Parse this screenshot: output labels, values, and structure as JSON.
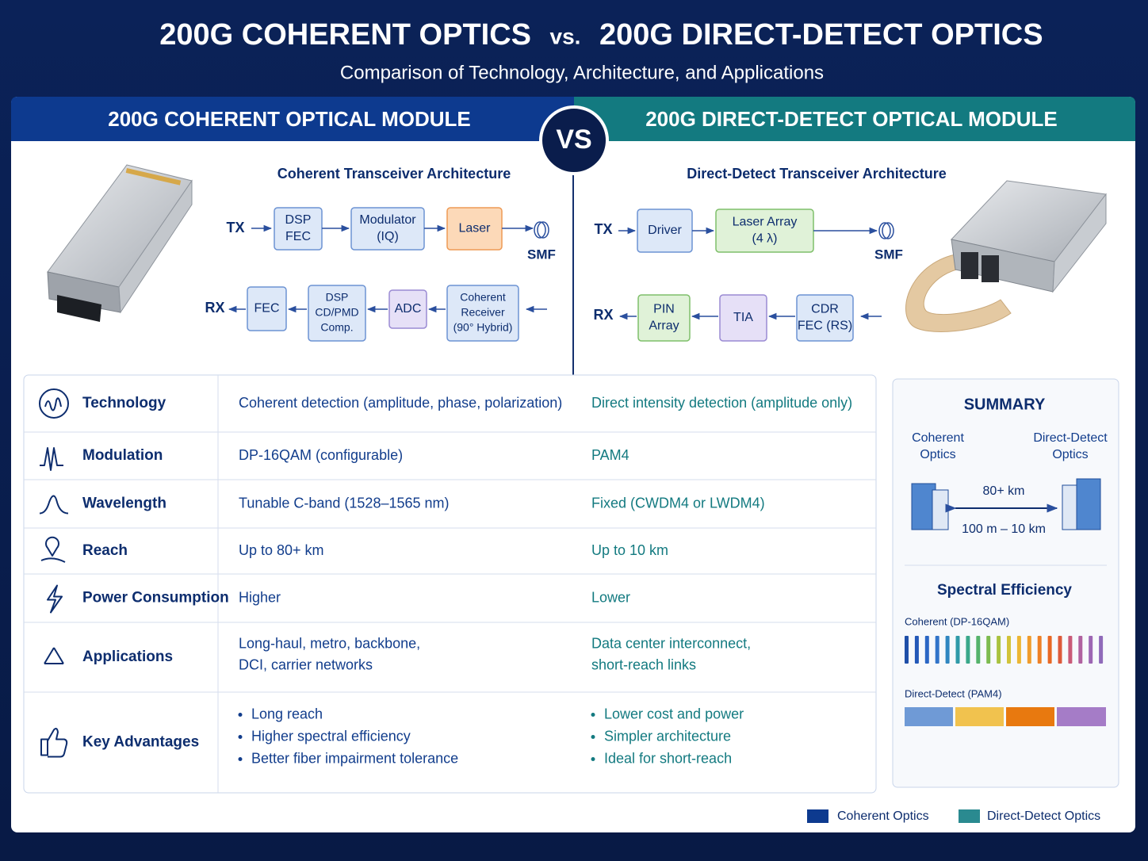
{
  "header": {
    "title_left": "200G COHERENT OPTICS",
    "title_vs": "vs.",
    "title_right": "200G DIRECT-DETECT OPTICS",
    "subtitle": "Comparison of Technology, Architecture, and Applications"
  },
  "coherent": {
    "heading": "200G COHERENT OPTICAL MODULE",
    "arch_title": "Coherent Transceiver Architecture",
    "tx": "TX",
    "rx": "RX",
    "smf": "SMF",
    "tx_blocks": [
      [
        "DSP",
        "FEC"
      ],
      [
        "Modulator",
        "(IQ)"
      ],
      [
        "Laser"
      ]
    ],
    "rx_blocks": [
      [
        "FEC"
      ],
      [
        "DSP",
        "CD/PMD",
        "Comp."
      ],
      [
        "ADC"
      ],
      [
        "Coherent",
        "Receiver",
        "(90° Hybrid)"
      ]
    ]
  },
  "vs": "VS",
  "direct": {
    "heading": "200G DIRECT-DETECT OPTICAL MODULE",
    "arch_title": "Direct-Detect Transceiver Architecture",
    "tx": "TX",
    "rx": "RX",
    "smf": "SMF",
    "tx_blocks": [
      [
        "Driver"
      ],
      [
        "Laser Array",
        "(4 λ)"
      ]
    ],
    "rx_blocks": [
      [
        "PIN",
        "Array"
      ],
      [
        "TIA"
      ],
      [
        "CDR",
        "FEC (RS)"
      ]
    ]
  },
  "table": {
    "rows": [
      {
        "label": "Technology",
        "coherent": [
          "Coherent detection (amplitude, phase, polarization)"
        ],
        "direct": [
          "Direct intensity detection (amplitude only)"
        ]
      },
      {
        "label": "Modulation",
        "coherent": [
          "DP-16QAM (configurable)"
        ],
        "direct": [
          "PAM4"
        ]
      },
      {
        "label": "Wavelength",
        "coherent": [
          "Tunable C-band (1528–1565 nm)"
        ],
        "direct": [
          "Fixed (CWDM4 or LWDM4)"
        ]
      },
      {
        "label": "Reach",
        "coherent": [
          "Up to 80+ km"
        ],
        "direct": [
          "Up to 10 km"
        ]
      },
      {
        "label": "Power Consumption",
        "coherent": [
          "Higher"
        ],
        "direct": [
          "Lower"
        ]
      },
      {
        "label": "Applications",
        "coherent": [
          "Long-haul, metro, backbone,",
          "DCI, carrier networks"
        ],
        "direct": [
          "Data center interconnect,",
          "short-reach links"
        ]
      },
      {
        "label": "Key Advantages",
        "coherent": [
          "Long reach",
          "Higher spectral efficiency",
          "Better fiber impairment tolerance"
        ],
        "direct": [
          "Lower cost and power",
          "Simpler architecture",
          "Ideal for short-reach"
        ]
      }
    ]
  },
  "summary": {
    "title": "SUMMARY",
    "left_label": [
      "Coherent",
      "Optics"
    ],
    "right_label": [
      "Direct-Detect",
      "Optics"
    ],
    "distance_top": "80+ km",
    "distance_bottom": "100 m – 10 km",
    "spectral_title": "Spectral Efficiency",
    "coherent_label": "Coherent (DP-16QAM)",
    "direct_label": "Direct-Detect (PAM4)"
  },
  "legend": [
    "Coherent Optics",
    "Direct-Detect Optics"
  ]
}
